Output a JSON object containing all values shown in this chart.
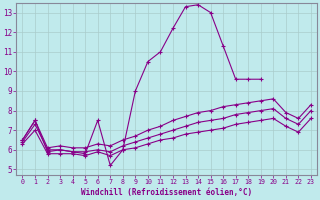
{
  "xlabel": "Windchill (Refroidissement éolien,°C)",
  "bg_color": "#c0eaec",
  "grid_color": "#aacccc",
  "line_color": "#880088",
  "xlim_min": -0.5,
  "xlim_max": 23.5,
  "ylim_min": 4.7,
  "ylim_max": 13.5,
  "yticks": [
    5,
    6,
    7,
    8,
    9,
    10,
    11,
    12,
    13
  ],
  "xticks": [
    0,
    1,
    2,
    3,
    4,
    5,
    6,
    7,
    8,
    9,
    10,
    11,
    12,
    13,
    14,
    15,
    16,
    17,
    18,
    19,
    20,
    21,
    22,
    23
  ],
  "lines": [
    {
      "x": [
        0,
        1,
        2,
        3,
        4,
        5,
        6,
        7,
        8,
        9,
        10,
        11,
        12,
        13,
        14,
        15,
        16,
        17,
        18,
        19
      ],
      "y": [
        6.5,
        7.5,
        5.9,
        6.0,
        5.9,
        5.8,
        7.5,
        5.2,
        6.0,
        9.0,
        10.5,
        11.0,
        12.2,
        13.3,
        13.4,
        13.0,
        11.3,
        9.6,
        9.6,
        9.6
      ]
    },
    {
      "x": [
        0,
        1,
        2,
        3,
        4,
        5,
        6,
        7,
        8,
        9,
        10,
        11,
        12,
        13,
        14,
        15,
        16,
        17,
        18,
        19,
        20,
        21,
        22,
        23
      ],
      "y": [
        6.5,
        7.5,
        6.1,
        6.2,
        6.1,
        6.1,
        6.3,
        6.2,
        6.5,
        6.7,
        7.0,
        7.2,
        7.5,
        7.7,
        7.9,
        8.0,
        8.2,
        8.3,
        8.4,
        8.5,
        8.6,
        7.9,
        7.6,
        8.3
      ]
    },
    {
      "x": [
        0,
        1,
        2,
        3,
        4,
        5,
        6,
        7,
        8,
        9,
        10,
        11,
        12,
        13,
        14,
        15,
        16,
        17,
        18,
        19,
        20,
        21,
        22,
        23
      ],
      "y": [
        6.4,
        7.3,
        6.0,
        6.0,
        5.9,
        5.9,
        6.0,
        5.9,
        6.2,
        6.4,
        6.6,
        6.8,
        7.0,
        7.2,
        7.4,
        7.5,
        7.6,
        7.8,
        7.9,
        8.0,
        8.1,
        7.6,
        7.3,
        8.0
      ]
    },
    {
      "x": [
        0,
        1,
        2,
        3,
        4,
        5,
        6,
        7,
        8,
        9,
        10,
        11,
        12,
        13,
        14,
        15,
        16,
        17,
        18,
        19,
        20,
        21,
        22,
        23
      ],
      "y": [
        6.3,
        7.0,
        5.8,
        5.8,
        5.8,
        5.7,
        5.9,
        5.7,
        6.0,
        6.1,
        6.3,
        6.5,
        6.6,
        6.8,
        6.9,
        7.0,
        7.1,
        7.3,
        7.4,
        7.5,
        7.6,
        7.2,
        6.9,
        7.6
      ]
    }
  ]
}
